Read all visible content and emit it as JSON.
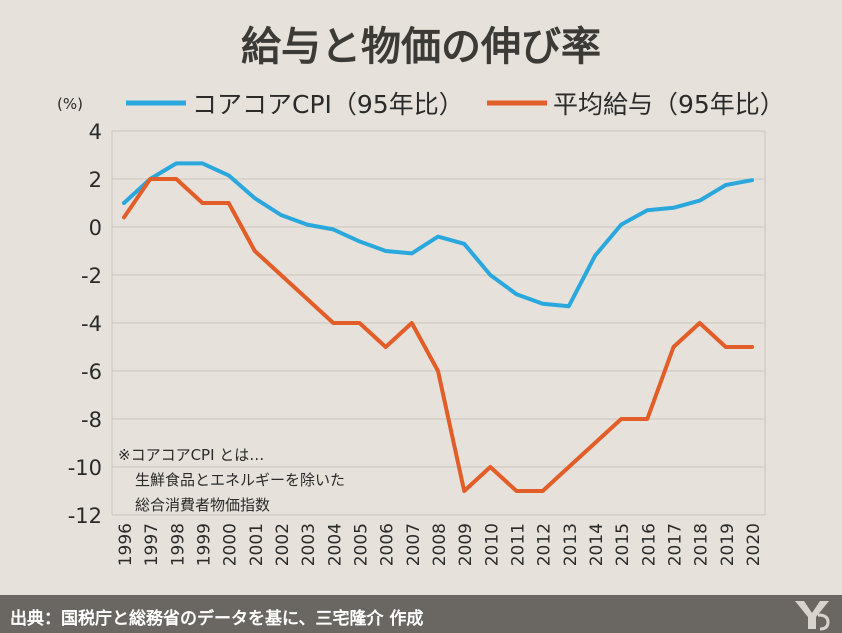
{
  "chart_data": {
    "type": "line",
    "title": "給与と物価の伸び率",
    "unit_label": "(%)",
    "x": [
      "1996",
      "1997",
      "1998",
      "1999",
      "2000",
      "2001",
      "2002",
      "2003",
      "2004",
      "2005",
      "2006",
      "2007",
      "2008",
      "2009",
      "2010",
      "2011",
      "2012",
      "2013",
      "2014",
      "2015",
      "2016",
      "2017",
      "2018",
      "2019",
      "2020"
    ],
    "ylim": [
      -12,
      4
    ],
    "yticks": [
      "4",
      "2",
      "0",
      "-2",
      "-4",
      "-6",
      "-8",
      "-10",
      "-12"
    ],
    "grid": true,
    "legend_position": "top",
    "series": [
      {
        "name": "コアコアCPI（95年比）",
        "color": "#2aa7dc",
        "values": [
          1.0,
          2.0,
          2.65,
          2.65,
          2.15,
          1.2,
          0.5,
          0.1,
          -0.1,
          -0.6,
          -1.0,
          -1.1,
          -0.4,
          -0.7,
          -2.0,
          -2.8,
          -3.2,
          -3.3,
          -1.2,
          0.1,
          0.7,
          0.8,
          1.1,
          1.75,
          1.95
        ]
      },
      {
        "name": "平均給与（95年比）",
        "color": "#e25d27",
        "values": [
          0.4,
          2.0,
          2.0,
          1.0,
          1.0,
          -1.0,
          -2.0,
          -3.0,
          -4.0,
          -4.0,
          -5.0,
          -4.0,
          -6.0,
          -11.0,
          -10.0,
          -11.0,
          -11.0,
          -10.0,
          -9.0,
          -8.0,
          -8.0,
          -5.0,
          -4.0,
          -5.0,
          -5.0
        ]
      }
    ],
    "annotation": [
      "※コアコアCPI とは…",
      "生鮮食品とエネルギーを除いた",
      "総合消費者物価指数"
    ]
  },
  "footer": {
    "text": "出典：国税庁と総務省のデータを基に、三宅隆介 作成",
    "logo": "publisher-logo"
  },
  "colors": {
    "background": "#e6e2db",
    "footer_bg": "#6a6763",
    "grid": "#c9c5be"
  }
}
